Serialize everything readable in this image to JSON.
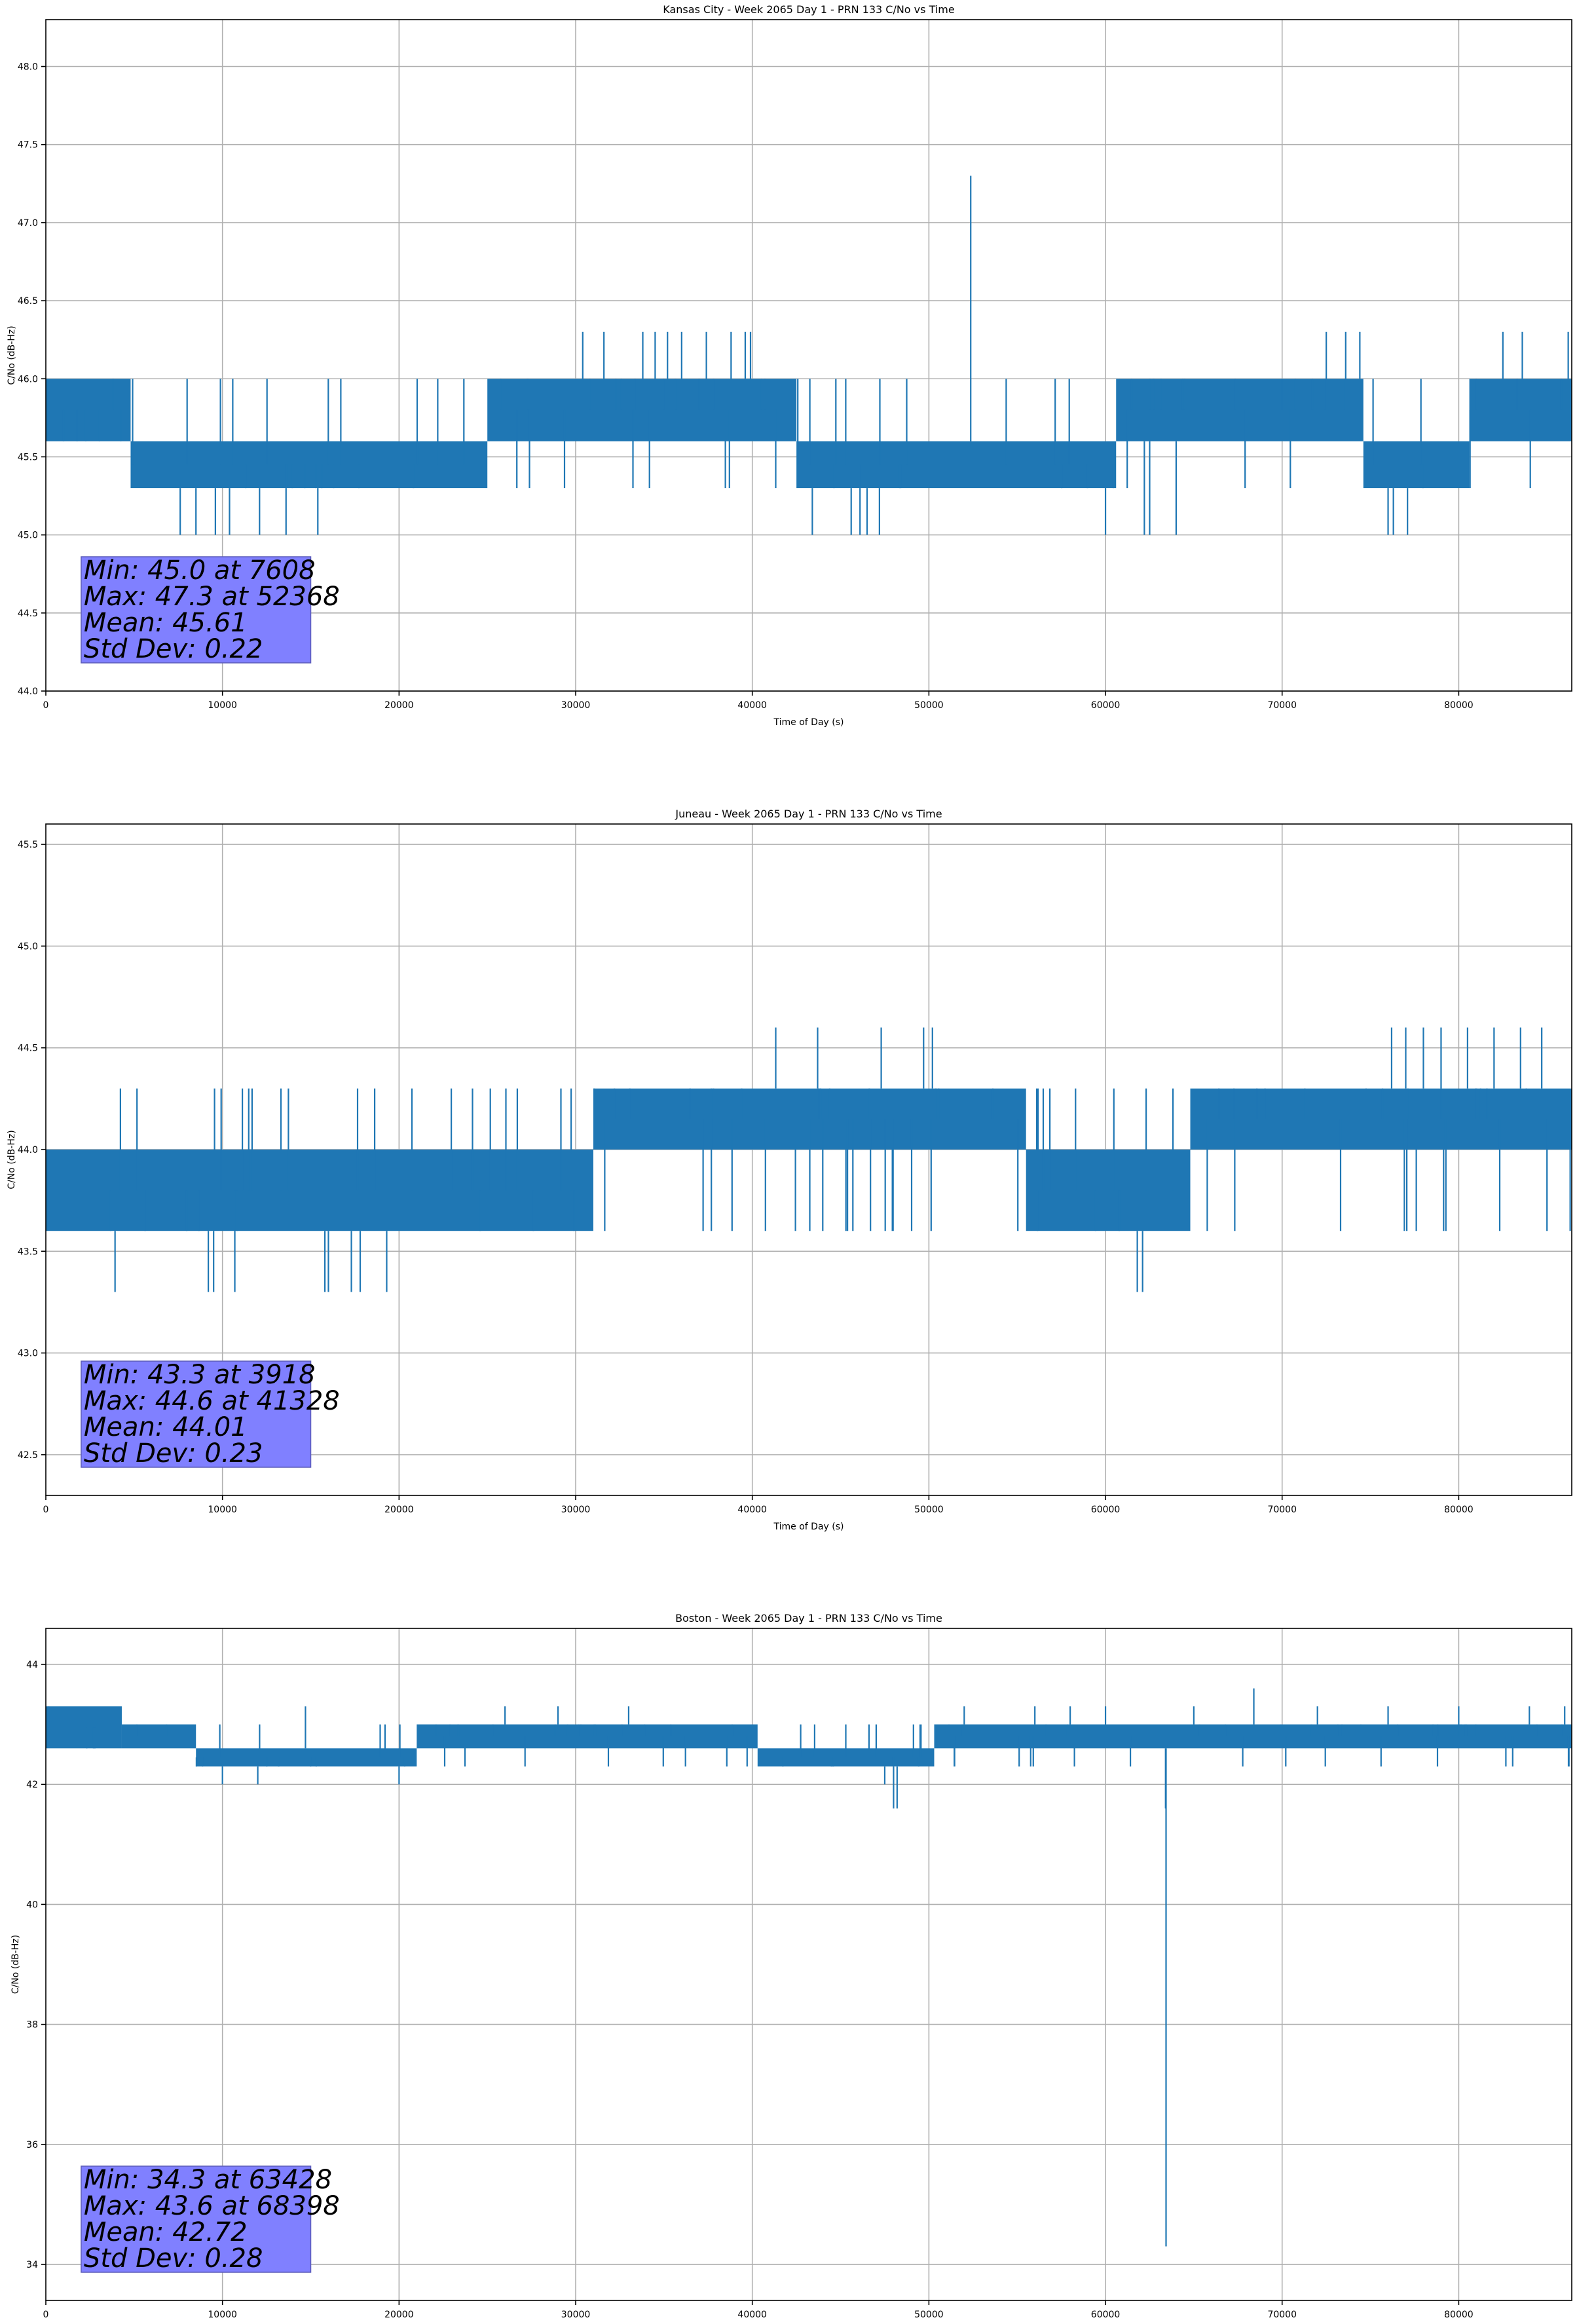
{
  "chart_data": [
    {
      "type": "line",
      "title": "Kansas City - Week 2065 Day 1 - PRN 133 C/No vs Time",
      "xlabel": "Time of Day (s)",
      "ylabel": "C/No (dB-Hz)",
      "xlim": [
        0,
        86400
      ],
      "ylim": [
        44.0,
        48.3
      ],
      "x_ticks": [
        0,
        10000,
        20000,
        30000,
        40000,
        50000,
        60000,
        70000,
        80000
      ],
      "y_ticks": [
        44.0,
        44.5,
        45.0,
        45.5,
        46.0,
        46.5,
        47.0,
        47.5,
        48.0
      ],
      "y_tick_labels": [
        "44.0",
        "44.5",
        "45.0",
        "45.5",
        "46.0",
        "46.5",
        "47.0",
        "47.5",
        "48.0"
      ],
      "grid": true,
      "color": "#1f77b4",
      "segments": [
        {
          "x0": 0,
          "x1": 4800,
          "lo": 45.6,
          "hi": 46.0
        },
        {
          "x0": 4800,
          "x1": 25000,
          "lo": 45.3,
          "hi": 45.6
        },
        {
          "x0": 25000,
          "x1": 42500,
          "lo": 45.6,
          "hi": 46.0
        },
        {
          "x0": 42500,
          "x1": 60600,
          "lo": 45.3,
          "hi": 45.6
        },
        {
          "x0": 60600,
          "x1": 74600,
          "lo": 45.6,
          "hi": 46.0
        },
        {
          "x0": 74600,
          "x1": 80600,
          "lo": 45.3,
          "hi": 45.6
        },
        {
          "x0": 80600,
          "x1": 86400,
          "lo": 45.6,
          "hi": 46.0
        }
      ],
      "spikes": [
        [
          7608,
          45.0
        ],
        [
          8500,
          45.0
        ],
        [
          9600,
          45.0
        ],
        [
          10400,
          45.0
        ],
        [
          12100,
          45.0
        ],
        [
          13600,
          45.0
        ],
        [
          15400,
          45.0
        ],
        [
          30400,
          46.3
        ],
        [
          31600,
          46.3
        ],
        [
          33800,
          46.3
        ],
        [
          34500,
          46.3
        ],
        [
          35200,
          46.3
        ],
        [
          36000,
          46.3
        ],
        [
          37400,
          46.3
        ],
        [
          38800,
          46.3
        ],
        [
          39600,
          46.3
        ],
        [
          39900,
          46.3
        ],
        [
          52368,
          47.3
        ],
        [
          43400,
          45.0
        ],
        [
          45600,
          45.0
        ],
        [
          46100,
          45.0
        ],
        [
          46500,
          45.0
        ],
        [
          47200,
          45.0
        ],
        [
          60000,
          45.0
        ],
        [
          62200,
          45.0
        ],
        [
          62500,
          45.0
        ],
        [
          64000,
          45.0
        ],
        [
          72500,
          46.3
        ],
        [
          73600,
          46.3
        ],
        [
          74400,
          46.3
        ],
        [
          76000,
          45.0
        ],
        [
          76300,
          45.0
        ],
        [
          77100,
          45.0
        ],
        [
          82500,
          46.3
        ],
        [
          83600,
          46.3
        ],
        [
          86200,
          46.3
        ]
      ],
      "stats": [
        "Min: 45.0 at 7608",
        "Max: 47.3 at 52368",
        "Mean: 45.61",
        "Std Dev: 0.22"
      ]
    },
    {
      "type": "line",
      "title": "Juneau - Week 2065 Day 1 - PRN 133 C/No vs Time",
      "xlabel": "Time of Day (s)",
      "ylabel": "C/No (dB-Hz)",
      "xlim": [
        0,
        86400
      ],
      "ylim": [
        42.3,
        45.6
      ],
      "x_ticks": [
        0,
        10000,
        20000,
        30000,
        40000,
        50000,
        60000,
        70000,
        80000
      ],
      "y_ticks": [
        42.5,
        43.0,
        43.5,
        44.0,
        44.5,
        45.0,
        45.5
      ],
      "y_tick_labels": [
        "42.5",
        "43.0",
        "43.5",
        "44.0",
        "44.5",
        "45.0",
        "45.5"
      ],
      "grid": true,
      "color": "#1f77b4",
      "segments": [
        {
          "x0": 0,
          "x1": 31000,
          "lo": 43.6,
          "hi": 44.0
        },
        {
          "x0": 31000,
          "x1": 55500,
          "lo": 44.0,
          "hi": 44.3
        },
        {
          "x0": 55500,
          "x1": 64800,
          "lo": 43.6,
          "hi": 44.0
        },
        {
          "x0": 64800,
          "x1": 86400,
          "lo": 44.0,
          "hi": 44.3
        }
      ],
      "spikes": [
        [
          3918,
          43.3
        ],
        [
          9200,
          43.3
        ],
        [
          9500,
          43.3
        ],
        [
          10700,
          43.3
        ],
        [
          15800,
          43.3
        ],
        [
          16000,
          43.3
        ],
        [
          17300,
          43.3
        ],
        [
          17800,
          43.3
        ],
        [
          19300,
          43.3
        ],
        [
          41328,
          44.6
        ],
        [
          43700,
          44.6
        ],
        [
          47300,
          44.6
        ],
        [
          49700,
          44.6
        ],
        [
          50200,
          44.6
        ],
        [
          61800,
          43.3
        ],
        [
          62100,
          43.3
        ],
        [
          76200,
          44.6
        ],
        [
          77000,
          44.6
        ],
        [
          78000,
          44.6
        ],
        [
          79000,
          44.6
        ],
        [
          80500,
          44.6
        ],
        [
          82000,
          44.6
        ],
        [
          83500,
          44.6
        ],
        [
          84700,
          44.6
        ]
      ],
      "stats": [
        "Min: 43.3 at 3918",
        "Max: 44.6 at 41328",
        "Mean: 44.01",
        "Std Dev: 0.23"
      ]
    },
    {
      "type": "line",
      "title": "Boston - Week 2065 Day 1 - PRN 133 C/No vs Time",
      "xlabel": "Time of Day (s)",
      "ylabel": "C/No (dB-Hz)",
      "xlim": [
        0,
        86400
      ],
      "ylim": [
        33.4,
        44.6
      ],
      "x_ticks": [
        0,
        10000,
        20000,
        30000,
        40000,
        50000,
        60000,
        70000,
        80000
      ],
      "y_ticks": [
        34,
        36,
        38,
        40,
        42,
        44
      ],
      "y_tick_labels": [
        "34",
        "36",
        "38",
        "40",
        "42",
        "44"
      ],
      "grid": true,
      "color": "#1f77b4",
      "segments": [
        {
          "x0": 0,
          "x1": 4300,
          "lo": 42.6,
          "hi": 43.3
        },
        {
          "x0": 4300,
          "x1": 8500,
          "lo": 42.6,
          "hi": 43.0
        },
        {
          "x0": 8500,
          "x1": 21000,
          "lo": 42.3,
          "hi": 42.6
        },
        {
          "x0": 21000,
          "x1": 40300,
          "lo": 42.6,
          "hi": 43.0
        },
        {
          "x0": 40300,
          "x1": 50300,
          "lo": 42.3,
          "hi": 42.6
        },
        {
          "x0": 50300,
          "x1": 86400,
          "lo": 42.6,
          "hi": 43.0
        }
      ],
      "spikes": [
        [
          63428,
          34.3
        ],
        [
          68398,
          43.6
        ],
        [
          48000,
          41.6
        ],
        [
          48200,
          41.6
        ],
        [
          47500,
          42.0
        ],
        [
          63400,
          41.6
        ],
        [
          10000,
          42.0
        ],
        [
          12000,
          42.0
        ],
        [
          14700,
          43.3
        ],
        [
          20000,
          42.0
        ],
        [
          26000,
          43.3
        ],
        [
          29000,
          43.3
        ],
        [
          33000,
          43.3
        ],
        [
          52000,
          43.3
        ],
        [
          56000,
          43.3
        ],
        [
          58000,
          43.3
        ],
        [
          60000,
          43.3
        ],
        [
          65000,
          43.3
        ],
        [
          72000,
          43.3
        ],
        [
          76000,
          43.3
        ],
        [
          80000,
          43.3
        ],
        [
          84000,
          43.3
        ],
        [
          86000,
          43.3
        ]
      ],
      "stats": [
        "Min: 34.3 at 63428",
        "Max: 43.6 at 68398",
        "Mean: 42.72",
        "Std Dev: 0.28"
      ]
    }
  ]
}
